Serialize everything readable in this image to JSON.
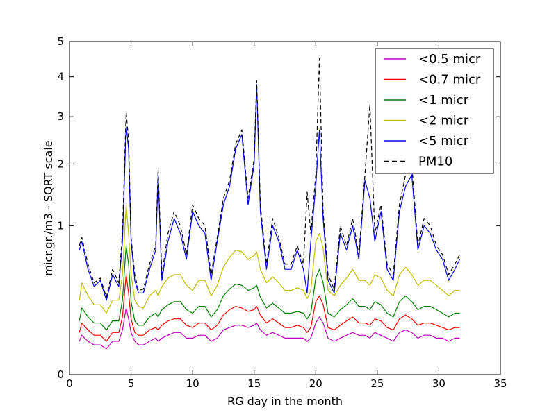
{
  "chart_data": {
    "type": "line",
    "title": "",
    "xlabel": "RG day in the month",
    "ylabel": "micr.gr./m3 - SQRT scale",
    "y_scale": "sqrt",
    "xlim": [
      0,
      35
    ],
    "ylim": [
      0,
      5
    ],
    "x_ticks": [
      0,
      5,
      10,
      15,
      20,
      25,
      30,
      35
    ],
    "y_ticks": [
      0,
      1,
      2,
      3,
      4,
      5
    ],
    "grid": false,
    "legend_position": "top-right",
    "x": [
      0.8,
      1.0,
      1.5,
      2.0,
      2.5,
      3.0,
      3.5,
      4.0,
      4.3,
      4.6,
      4.8,
      5.0,
      5.3,
      5.6,
      6.0,
      6.5,
      7.0,
      7.2,
      7.5,
      8.0,
      8.5,
      9.0,
      9.5,
      10.0,
      10.5,
      11.0,
      11.5,
      12.0,
      12.5,
      13.0,
      13.5,
      14.0,
      14.5,
      15.0,
      15.2,
      15.5,
      16.0,
      16.5,
      17.0,
      17.5,
      18.0,
      18.5,
      19.0,
      19.3,
      19.6,
      20.0,
      20.3,
      20.6,
      21.0,
      21.5,
      22.0,
      22.5,
      23.0,
      23.5,
      24.0,
      24.4,
      24.8,
      25.3,
      25.8,
      26.3,
      26.8,
      27.3,
      27.8,
      28.3,
      28.8,
      29.3,
      29.8,
      30.3,
      30.8,
      31.3,
      31.7
    ],
    "series": [
      {
        "name": "<0.5 micr",
        "color": "#bf00bf",
        "dash": "solid",
        "values": [
          0.05,
          0.07,
          0.05,
          0.04,
          0.04,
          0.03,
          0.05,
          0.05,
          0.09,
          0.2,
          0.14,
          0.08,
          0.05,
          0.04,
          0.04,
          0.05,
          0.06,
          0.05,
          0.06,
          0.07,
          0.08,
          0.08,
          0.06,
          0.06,
          0.07,
          0.07,
          0.05,
          0.06,
          0.09,
          0.1,
          0.11,
          0.11,
          0.1,
          0.11,
          0.12,
          0.09,
          0.07,
          0.08,
          0.07,
          0.06,
          0.06,
          0.06,
          0.06,
          0.05,
          0.06,
          0.12,
          0.15,
          0.12,
          0.06,
          0.05,
          0.06,
          0.07,
          0.08,
          0.07,
          0.07,
          0.06,
          0.08,
          0.07,
          0.06,
          0.05,
          0.08,
          0.09,
          0.08,
          0.06,
          0.07,
          0.07,
          0.06,
          0.06,
          0.05,
          0.06,
          0.06
        ]
      },
      {
        "name": "<0.7 micr",
        "color": "#ff0000",
        "dash": "solid",
        "values": [
          0.08,
          0.12,
          0.09,
          0.07,
          0.07,
          0.05,
          0.08,
          0.08,
          0.15,
          0.45,
          0.3,
          0.14,
          0.08,
          0.07,
          0.07,
          0.09,
          0.1,
          0.09,
          0.11,
          0.13,
          0.14,
          0.14,
          0.11,
          0.1,
          0.12,
          0.12,
          0.09,
          0.11,
          0.16,
          0.19,
          0.21,
          0.2,
          0.18,
          0.19,
          0.21,
          0.16,
          0.12,
          0.14,
          0.12,
          0.1,
          0.1,
          0.11,
          0.1,
          0.08,
          0.1,
          0.24,
          0.28,
          0.22,
          0.1,
          0.09,
          0.11,
          0.13,
          0.15,
          0.12,
          0.12,
          0.11,
          0.14,
          0.13,
          0.1,
          0.09,
          0.14,
          0.16,
          0.14,
          0.11,
          0.12,
          0.12,
          0.11,
          0.1,
          0.09,
          0.1,
          0.1
        ]
      },
      {
        "name": "<1 micr",
        "color": "#008000",
        "dash": "solid",
        "values": [
          0.13,
          0.2,
          0.15,
          0.12,
          0.12,
          0.09,
          0.13,
          0.13,
          0.25,
          0.75,
          0.55,
          0.24,
          0.13,
          0.11,
          0.11,
          0.15,
          0.17,
          0.15,
          0.19,
          0.22,
          0.24,
          0.24,
          0.19,
          0.17,
          0.21,
          0.21,
          0.15,
          0.19,
          0.28,
          0.33,
          0.37,
          0.36,
          0.32,
          0.34,
          0.36,
          0.27,
          0.2,
          0.23,
          0.2,
          0.17,
          0.17,
          0.18,
          0.17,
          0.14,
          0.17,
          0.42,
          0.5,
          0.38,
          0.17,
          0.15,
          0.19,
          0.22,
          0.26,
          0.21,
          0.21,
          0.19,
          0.24,
          0.22,
          0.17,
          0.15,
          0.24,
          0.28,
          0.24,
          0.19,
          0.21,
          0.21,
          0.19,
          0.17,
          0.15,
          0.17,
          0.17
        ]
      },
      {
        "name": "<2 micr",
        "color": "#bfbf00",
        "dash": "solid",
        "values": [
          0.25,
          0.38,
          0.28,
          0.22,
          0.22,
          0.17,
          0.25,
          0.25,
          0.45,
          1.3,
          0.9,
          0.45,
          0.25,
          0.21,
          0.2,
          0.28,
          0.32,
          0.28,
          0.35,
          0.42,
          0.45,
          0.45,
          0.36,
          0.32,
          0.4,
          0.4,
          0.28,
          0.36,
          0.52,
          0.62,
          0.7,
          0.68,
          0.6,
          0.64,
          0.68,
          0.5,
          0.38,
          0.43,
          0.38,
          0.32,
          0.32,
          0.34,
          0.32,
          0.26,
          0.32,
          0.8,
          0.9,
          0.72,
          0.32,
          0.28,
          0.36,
          0.42,
          0.5,
          0.4,
          0.4,
          0.36,
          0.45,
          0.42,
          0.32,
          0.28,
          0.45,
          0.52,
          0.45,
          0.36,
          0.4,
          0.4,
          0.36,
          0.32,
          0.28,
          0.32,
          0.32
        ]
      },
      {
        "name": "<5 micr",
        "color": "#0000ff",
        "dash": "solid",
        "values": [
          0.7,
          0.8,
          0.5,
          0.35,
          0.4,
          0.25,
          0.45,
          0.35,
          0.8,
          2.8,
          2.3,
          0.8,
          0.4,
          0.3,
          0.3,
          0.5,
          0.7,
          1.8,
          0.4,
          0.8,
          1.1,
          0.9,
          0.6,
          1.2,
          1.0,
          0.9,
          0.4,
          0.8,
          1.3,
          1.6,
          2.3,
          2.6,
          1.3,
          2.0,
          3.8,
          1.2,
          0.5,
          1.0,
          0.8,
          0.5,
          0.5,
          0.7,
          0.5,
          0.3,
          0.8,
          1.6,
          2.7,
          1.1,
          0.4,
          0.3,
          0.9,
          0.7,
          1.0,
          0.6,
          1.7,
          1.4,
          0.8,
          1.2,
          0.5,
          0.4,
          1.2,
          1.6,
          1.8,
          0.7,
          1.0,
          0.9,
          0.7,
          0.6,
          0.4,
          0.5,
          0.6
        ]
      },
      {
        "name": "PM10",
        "color": "#000000",
        "dash": "dashed",
        "values": [
          0.75,
          0.85,
          0.55,
          0.38,
          0.42,
          0.27,
          0.5,
          0.38,
          0.9,
          3.1,
          2.5,
          0.85,
          0.45,
          0.32,
          0.33,
          0.55,
          0.75,
          1.9,
          0.45,
          0.9,
          1.2,
          1.0,
          0.65,
          1.3,
          1.1,
          1.0,
          0.45,
          0.85,
          1.4,
          1.7,
          2.4,
          2.7,
          1.4,
          2.1,
          3.9,
          1.3,
          0.55,
          1.1,
          0.85,
          0.55,
          0.55,
          0.75,
          0.55,
          1.5,
          0.9,
          1.8,
          4.5,
          1.2,
          0.45,
          0.33,
          1.0,
          0.75,
          1.1,
          0.65,
          1.8,
          3.3,
          0.9,
          1.3,
          0.55,
          0.45,
          1.3,
          1.8,
          2.0,
          0.75,
          1.1,
          1.0,
          0.75,
          0.65,
          0.45,
          0.55,
          0.65
        ]
      }
    ]
  }
}
